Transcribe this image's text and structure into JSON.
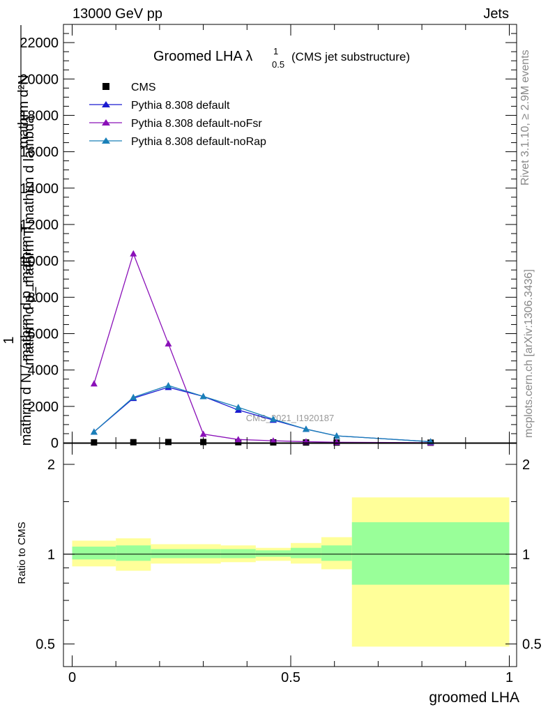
{
  "header": {
    "left": "13000 GeV pp",
    "right": "Jets"
  },
  "side": {
    "rivet": "Rivet 3.1.10, ≥ 2.9M events",
    "mcplots": "mcplots.cern.ch [arXiv:1306.3436]"
  },
  "chart_data": [
    {
      "type": "line",
      "panel": "main",
      "title": "Groomed LHA",
      "title_lambda": "λ",
      "title_sup": "1",
      "title_sub": "0.5",
      "subtitle": "(CMS jet substructure)",
      "ylabel_lines": [
        "mathrm d²N",
        "mathrm d p_mathrm T mathrm d lambda",
        "1",
        "mathrm d N / mathrm d p_mathrm T"
      ],
      "watermark": "CMS_2021_I1920187",
      "ylim": [
        0,
        23000
      ],
      "yticks": [
        0,
        2000,
        4000,
        6000,
        8000,
        10000,
        12000,
        14000,
        16000,
        18000,
        20000,
        22000
      ],
      "ytick_labels": [
        "0",
        "2000",
        "4000",
        "6000",
        "8000",
        "10000",
        "12000",
        "14000",
        "16000",
        "18000",
        "20000",
        "22000"
      ],
      "xlim": [
        -0.02,
        1.0
      ],
      "legend_position": "top-left",
      "bin_edges": [
        0,
        0.1,
        0.18,
        0.26,
        0.34,
        0.42,
        0.5,
        0.57,
        0.64,
        1.0
      ],
      "series": [
        {
          "name": "CMS",
          "marker": "square",
          "color": "#000000",
          "x": [
            0.05,
            0.14,
            0.22,
            0.3,
            0.38,
            0.46,
            0.535,
            0.605,
            0.82
          ],
          "values": [
            20,
            30,
            40,
            40,
            30,
            20,
            15,
            10,
            5
          ]
        },
        {
          "name": "Pythia 8.308 default",
          "marker": "triangle",
          "color": "#1a1ad0",
          "x": [
            0.05,
            0.14,
            0.22,
            0.3,
            0.38,
            0.46,
            0.535,
            0.605,
            0.82
          ],
          "values": [
            600,
            2450,
            3050,
            2550,
            1800,
            1250,
            750,
            380,
            60
          ]
        },
        {
          "name": "Pythia 8.308 default-noFsr",
          "marker": "triangle",
          "color": "#8a10b8",
          "x": [
            0.05,
            0.14,
            0.22,
            0.3,
            0.38,
            0.46,
            0.535,
            0.605,
            0.82
          ],
          "values": [
            3250,
            10400,
            5450,
            480,
            180,
            110,
            60,
            30,
            5
          ]
        },
        {
          "name": "Pythia 8.308 default-noRap",
          "marker": "triangle",
          "color": "#1a80b8",
          "x": [
            0.05,
            0.14,
            0.22,
            0.3,
            0.38,
            0.46,
            0.535,
            0.605,
            0.82
          ],
          "values": [
            600,
            2500,
            3150,
            2550,
            1950,
            1300,
            750,
            380,
            60
          ]
        }
      ]
    },
    {
      "type": "area",
      "panel": "ratio",
      "ylabel": "Ratio to CMS",
      "xlabel": "groomed LHA",
      "ylim": [
        0.42,
        2.35
      ],
      "ylog": true,
      "yticks": [
        0.5,
        1,
        2
      ],
      "ytick_labels": [
        "0.5",
        "1",
        "2"
      ],
      "xticks": [
        0,
        0.5,
        1
      ],
      "xtick_labels": [
        "0",
        "0.5",
        "1"
      ],
      "colors": {
        "stat": "#99ff99",
        "total": "#ffff99"
      },
      "bands": [
        {
          "x0": 0.0,
          "x1": 0.1,
          "stat": [
            0.96,
            1.06
          ],
          "total": [
            0.91,
            1.11
          ]
        },
        {
          "x0": 0.1,
          "x1": 0.18,
          "stat": [
            0.95,
            1.07
          ],
          "total": [
            0.88,
            1.13
          ]
        },
        {
          "x0": 0.18,
          "x1": 0.26,
          "stat": [
            0.97,
            1.04
          ],
          "total": [
            0.93,
            1.08
          ]
        },
        {
          "x0": 0.26,
          "x1": 0.34,
          "stat": [
            0.97,
            1.04
          ],
          "total": [
            0.93,
            1.08
          ]
        },
        {
          "x0": 0.34,
          "x1": 0.42,
          "stat": [
            0.97,
            1.04
          ],
          "total": [
            0.94,
            1.07
          ]
        },
        {
          "x0": 0.42,
          "x1": 0.5,
          "stat": [
            0.98,
            1.03
          ],
          "total": [
            0.95,
            1.05
          ]
        },
        {
          "x0": 0.5,
          "x1": 0.57,
          "stat": [
            0.97,
            1.05
          ],
          "total": [
            0.93,
            1.09
          ]
        },
        {
          "x0": 0.57,
          "x1": 0.64,
          "stat": [
            0.95,
            1.07
          ],
          "total": [
            0.89,
            1.14
          ]
        },
        {
          "x0": 0.64,
          "x1": 1.0,
          "stat": [
            0.79,
            1.28
          ],
          "total": [
            0.49,
            1.55
          ]
        }
      ]
    }
  ]
}
